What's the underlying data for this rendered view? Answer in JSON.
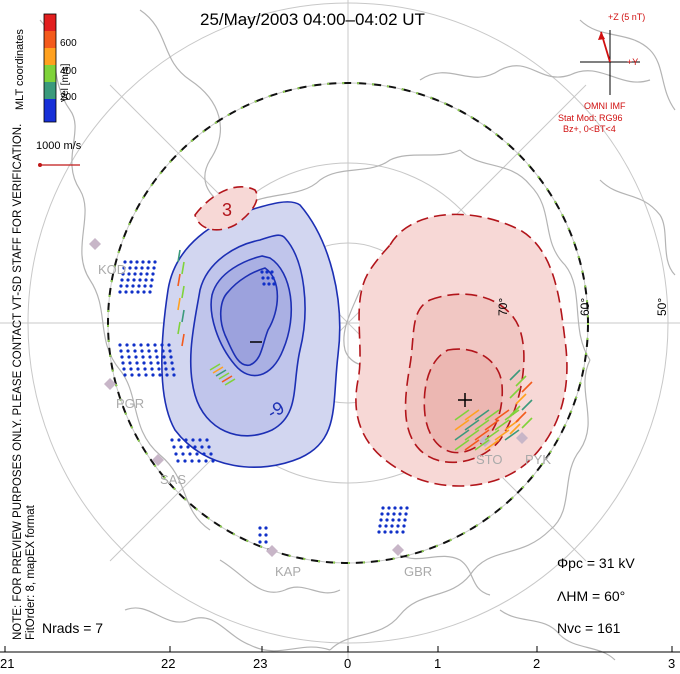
{
  "title": "25/May/2003 04:00–04:02 UT",
  "coords": "MLT coordinates",
  "vel_label": "Vel [m/s]",
  "vel_ticks": [
    "600",
    "400",
    "200"
  ],
  "scale_label": "1000 m/s",
  "note_line1": "NOTE: FOR PREVIEW PURPOSES ONLY. PLEASE CONTACT VT-SD STAFF FOR VERIFICATION.",
  "note_line2": "FitOrder: 8, mapEX format",
  "imf": {
    "z_label": "+Z (5 nT)",
    "y_label": "+Y",
    "source": "OMNI IMF",
    "model": "Stat Mod: RG96",
    "cond": "Bz+, 0<BT<4"
  },
  "lat_labels": [
    "50°",
    "60°",
    "70°"
  ],
  "stations": [
    "KOD",
    "PGR",
    "SAS",
    "KAP",
    "GBR",
    "STO",
    "PYK"
  ],
  "contours": {
    "minus": "–",
    "plus": "+",
    "neg_label": "-9",
    "pos_label": "3"
  },
  "stats": {
    "phi_pc": "Φpc = 31 kV",
    "lambda_hm": "ΛHM = 60°",
    "n_vc": "Nvc = 161",
    "n_rads": "Nrads = 7"
  },
  "mlt_axis": [
    "21",
    "22",
    "23",
    "0",
    "1",
    "2",
    "3"
  ],
  "colors": {
    "neg_fill": "#d2d6f0",
    "neg_line": "#1c2fb4",
    "pos_fill": "#f7d8d6",
    "pos_line": "#b2151b",
    "coast": "#b4b4b4",
    "grid": "#c8c8c8",
    "imf": "#d01010"
  }
}
